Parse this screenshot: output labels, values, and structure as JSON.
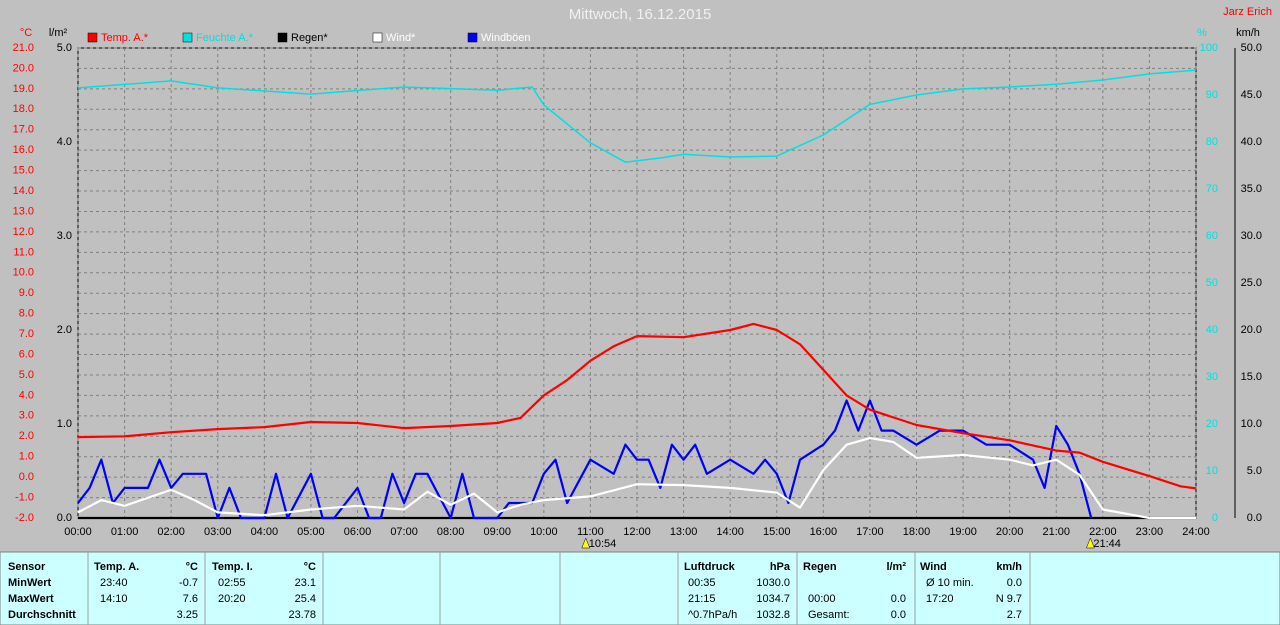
{
  "chart_data": {
    "type": "line",
    "title": "Mittwoch, 16.12.2015",
    "author": "Jarz Erich",
    "y_label": "°C",
    "y2_label": "l/m²",
    "y3_label": "%",
    "y4_label": "km/h",
    "xlim": [
      0,
      24
    ],
    "xticks": [
      {
        "value": 0,
        "label": "00:00"
      },
      {
        "value": 1,
        "label": "01:00"
      },
      {
        "value": 2,
        "label": "02:00"
      },
      {
        "value": 3,
        "label": "03:00"
      },
      {
        "value": 4,
        "label": "04:00"
      },
      {
        "value": 5,
        "label": "05:00"
      },
      {
        "value": 6,
        "label": "06:00"
      },
      {
        "value": 7,
        "label": "07:00"
      },
      {
        "value": 8,
        "label": "08:00"
      },
      {
        "value": 9,
        "label": "09:00"
      },
      {
        "value": 10,
        "label": "10:00"
      },
      {
        "value": 11,
        "label": "11:00"
      },
      {
        "value": 12,
        "label": "12:00"
      },
      {
        "value": 13,
        "label": "13:00"
      },
      {
        "value": 14,
        "label": "14:00"
      },
      {
        "value": 15,
        "label": "15:00"
      },
      {
        "value": 16,
        "label": "16:00"
      },
      {
        "value": 17,
        "label": "17:00"
      },
      {
        "value": 18,
        "label": "18:00"
      },
      {
        "value": 19,
        "label": "19:00"
      },
      {
        "value": 20,
        "label": "20:00"
      },
      {
        "value": 21,
        "label": "21:00"
      },
      {
        "value": 22,
        "label": "22:00"
      },
      {
        "value": 23,
        "label": "23:00"
      },
      {
        "value": 24,
        "label": "24:00"
      }
    ],
    "ylim": [
      -2,
      21
    ],
    "yticks": [
      {
        "value": -2,
        "label": "-2.0"
      },
      {
        "value": -1,
        "label": "-1.0"
      },
      {
        "value": 0,
        "label": "0.0"
      },
      {
        "value": 1,
        "label": "1.0"
      },
      {
        "value": 2,
        "label": "2.0"
      },
      {
        "value": 3,
        "label": "3.0"
      },
      {
        "value": 4,
        "label": "4.0"
      },
      {
        "value": 5,
        "label": "5.0"
      },
      {
        "value": 6,
        "label": "6.0"
      },
      {
        "value": 7,
        "label": "7.0"
      },
      {
        "value": 8,
        "label": "8.0"
      },
      {
        "value": 9,
        "label": "9.0"
      },
      {
        "value": 10,
        "label": "10.0"
      },
      {
        "value": 11,
        "label": "11.0"
      },
      {
        "value": 12,
        "label": "12.0"
      },
      {
        "value": 13,
        "label": "13.0"
      },
      {
        "value": 14,
        "label": "14.0"
      },
      {
        "value": 15,
        "label": "15.0"
      },
      {
        "value": 16,
        "label": "16.0"
      },
      {
        "value": 17,
        "label": "17.0"
      },
      {
        "value": 18,
        "label": "18.0"
      },
      {
        "value": 19,
        "label": "19.0"
      },
      {
        "value": 20,
        "label": "20.0"
      },
      {
        "value": 21,
        "label": "21.0"
      }
    ],
    "y2lim": [
      0,
      5
    ],
    "y2ticks": [
      {
        "value": 0,
        "label": "0.0"
      },
      {
        "value": 1,
        "label": "1.0"
      },
      {
        "value": 2,
        "label": "2.0"
      },
      {
        "value": 3,
        "label": "3.0"
      },
      {
        "value": 4,
        "label": "4.0"
      },
      {
        "value": 5,
        "label": "5.0"
      }
    ],
    "y3lim": [
      0,
      100
    ],
    "y3ticks": [
      0,
      10,
      20,
      30,
      40,
      50,
      60,
      70,
      80,
      90,
      100
    ],
    "y4lim": [
      0,
      50
    ],
    "y4ticks": [
      {
        "value": 0,
        "label": "0.0"
      },
      {
        "value": 5,
        "label": "5.0"
      },
      {
        "value": 10,
        "label": "10.0"
      },
      {
        "value": 15,
        "label": "15.0"
      },
      {
        "value": 20,
        "label": "20.0"
      },
      {
        "value": 25,
        "label": "25.0"
      },
      {
        "value": 30,
        "label": "30.0"
      },
      {
        "value": 35,
        "label": "35.0"
      },
      {
        "value": 40,
        "label": "40.0"
      },
      {
        "value": 45,
        "label": "45.0"
      },
      {
        "value": 50,
        "label": "50.0"
      }
    ],
    "grid": true,
    "series": [
      {
        "name": "Temp. A.*",
        "color": "#ff0000",
        "axis": "y",
        "x": [
          0,
          1,
          2,
          3,
          4,
          5,
          6,
          7,
          8,
          9,
          9.5,
          10,
          10.5,
          11,
          11.5,
          12,
          13,
          14,
          14.5,
          15,
          15.5,
          16,
          16.5,
          17,
          18,
          19,
          20,
          21,
          21.5,
          22,
          23,
          23.67,
          24
        ],
        "values": [
          1.96,
          2.0,
          2.2,
          2.35,
          2.45,
          2.7,
          2.65,
          2.4,
          2.5,
          2.65,
          2.9,
          4.0,
          4.75,
          5.7,
          6.4,
          6.9,
          6.85,
          7.2,
          7.5,
          7.2,
          6.5,
          5.25,
          4.0,
          3.3,
          2.55,
          2.15,
          1.8,
          1.3,
          1.2,
          0.75,
          0.05,
          -0.45,
          -0.55
        ]
      },
      {
        "name": "Feuchte A.*",
        "color": "#00e0e0",
        "axis": "y3",
        "x": [
          0,
          2,
          3,
          5,
          7,
          9,
          9.75,
          10,
          11,
          11.75,
          12.5,
          13,
          14,
          15,
          16,
          17,
          18,
          19,
          20,
          21,
          22,
          23,
          24
        ],
        "values": [
          91.5,
          93,
          91.5,
          90.2,
          91.7,
          91,
          91.7,
          87.9,
          79.8,
          75.7,
          76.6,
          77.4,
          76.8,
          77,
          81.5,
          88,
          90,
          91.3,
          91.7,
          92.3,
          93.2,
          94.5,
          95.3
        ]
      },
      {
        "name": "Regen*",
        "color": "#000000",
        "axis": "y2",
        "x": [
          0,
          24
        ],
        "values": [
          0,
          0
        ]
      },
      {
        "name": "Wind*",
        "color": "#ffffff",
        "axis": "y4",
        "x": [
          0,
          0.5,
          1,
          2,
          2.5,
          3,
          4,
          5,
          6,
          7,
          7.5,
          8,
          8.5,
          9,
          9.5,
          10,
          11,
          12,
          13,
          14,
          15,
          15.5,
          16,
          16.5,
          17,
          17.5,
          18,
          19,
          20,
          20.5,
          21,
          21.5,
          22,
          23,
          24
        ],
        "values": [
          0.6,
          1.9,
          1.3,
          3.0,
          1.9,
          0.6,
          0.3,
          0.9,
          1.3,
          0.9,
          2.8,
          1.4,
          2.6,
          0.6,
          1.4,
          1.9,
          2.3,
          3.6,
          3.5,
          3.2,
          2.7,
          1.1,
          5.1,
          7.8,
          8.5,
          8.1,
          6.4,
          6.7,
          6.2,
          5.6,
          6.2,
          4.6,
          0.9,
          0,
          0
        ]
      },
      {
        "name": "Windböen",
        "color": "#0000ff",
        "axis": "y4",
        "x": [
          0,
          0.25,
          0.5,
          0.75,
          1,
          1.5,
          1.75,
          2,
          2.25,
          2.75,
          3,
          3.25,
          3.5,
          4,
          4.25,
          4.5,
          5,
          5.25,
          5.5,
          6,
          6.25,
          6.5,
          6.75,
          7,
          7.25,
          7.5,
          8,
          8.25,
          8.5,
          9,
          9.25,
          9.75,
          10,
          10.25,
          10.5,
          11,
          11.5,
          11.75,
          12,
          12.25,
          12.5,
          12.75,
          13,
          13.25,
          13.5,
          14,
          14.5,
          14.75,
          15,
          15.25,
          15.5,
          16,
          16.25,
          16.5,
          16.75,
          17,
          17.25,
          17.5,
          18,
          18.5,
          19,
          19.5,
          20,
          20.5,
          20.75,
          21,
          21.25,
          21.5,
          21.75
        ],
        "values": [
          1.6,
          3.2,
          6.2,
          1.6,
          3.2,
          3.2,
          6.2,
          3.2,
          4.7,
          4.7,
          0,
          3.2,
          0,
          0,
          4.7,
          0,
          4.7,
          0,
          0,
          3.2,
          0,
          0,
          4.7,
          1.6,
          4.7,
          4.7,
          0,
          4.7,
          0,
          0,
          1.6,
          1.6,
          4.7,
          6.2,
          1.6,
          6.2,
          4.7,
          7.8,
          6.2,
          6.2,
          3.2,
          7.8,
          6.2,
          7.8,
          4.7,
          6.2,
          4.7,
          6.2,
          4.7,
          1.6,
          6.2,
          7.8,
          9.3,
          12.5,
          9.3,
          12.5,
          9.3,
          9.3,
          7.8,
          9.3,
          9.3,
          7.8,
          7.8,
          6.2,
          3.2,
          9.8,
          7.8,
          4.7,
          0
        ]
      }
    ],
    "annotations": [
      {
        "text": "10:54",
        "x": 10.9
      },
      {
        "text": "21:44",
        "x": 21.733
      }
    ]
  },
  "stats": {
    "row_labels": [
      "Sensor",
      "MinWert",
      "MaxWert",
      "Durchschnitt"
    ],
    "groups": [
      {
        "header": "Temp. A.",
        "unit": "°C",
        "min": {
          "time": "23:40",
          "value": "-0.7"
        },
        "max": {
          "time": "14:10",
          "value": "7.6"
        },
        "avg": {
          "value": "3.25"
        }
      },
      {
        "header": "Temp. I.",
        "unit": "°C",
        "min": {
          "time": "02:55",
          "value": "23.1"
        },
        "max": {
          "time": "20:20",
          "value": "25.4"
        },
        "avg": {
          "value": "23.78"
        }
      },
      {
        "header": "Luftdruck",
        "unit": "hPa",
        "min": {
          "time": "00:35",
          "value": "1030.0"
        },
        "max": {
          "time": "21:15",
          "value": "1034.7"
        },
        "avg": {
          "time": "^0.7hPa/h",
          "value": "1032.8"
        }
      },
      {
        "header": "Regen",
        "unit": "l/m²",
        "max": {
          "time": "00:00",
          "value": "0.0"
        },
        "avg": {
          "time": "Gesamt:",
          "value": "0.0"
        }
      },
      {
        "header": "Wind",
        "unit": "km/h",
        "min": {
          "time": "Ø 10 min.",
          "value": "0.0"
        },
        "max": {
          "time": "17:20",
          "value": "N 9.7"
        },
        "avg": {
          "value": "2.7"
        }
      }
    ]
  }
}
